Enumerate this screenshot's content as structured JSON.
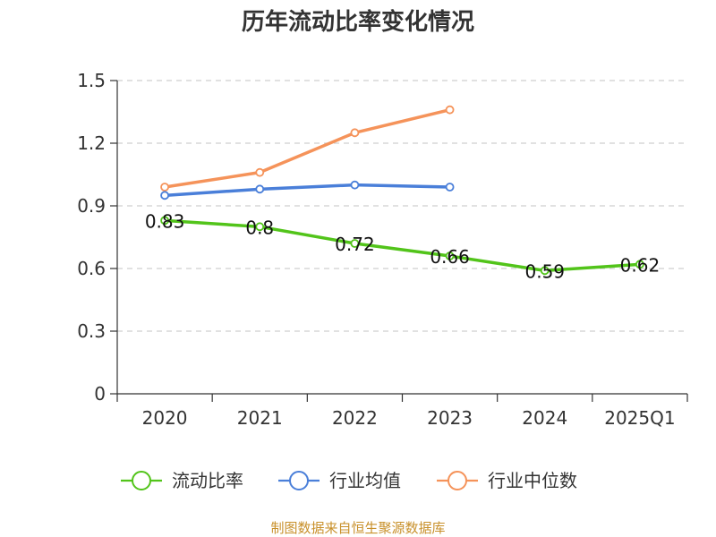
{
  "chart_data": {
    "type": "line",
    "title": "历年流动比率变化情况",
    "categories": [
      "2020",
      "2021",
      "2022",
      "2023",
      "2024",
      "2025Q1"
    ],
    "ylim": [
      0,
      1.5
    ],
    "yticks": [
      "0",
      "0.3",
      "0.6",
      "0.9",
      "1.2",
      "1.5"
    ],
    "grid": true,
    "legend_position": "bottom",
    "series": [
      {
        "name": "流动比率",
        "color": "#52c41a",
        "values": [
          0.83,
          0.8,
          0.72,
          0.66,
          0.59,
          0.62
        ],
        "labels": [
          "0.83",
          "0.8",
          "0.72",
          "0.66",
          "0.59",
          "0.62"
        ]
      },
      {
        "name": "行业均值",
        "color": "#4a7fd9",
        "values": [
          0.95,
          0.98,
          1.0,
          0.99,
          null,
          null
        ]
      },
      {
        "name": "行业中位数",
        "color": "#f5935a",
        "values": [
          0.99,
          1.06,
          1.25,
          1.36,
          null,
          null
        ]
      }
    ],
    "source": "制图数据来自恒生聚源数据库"
  }
}
